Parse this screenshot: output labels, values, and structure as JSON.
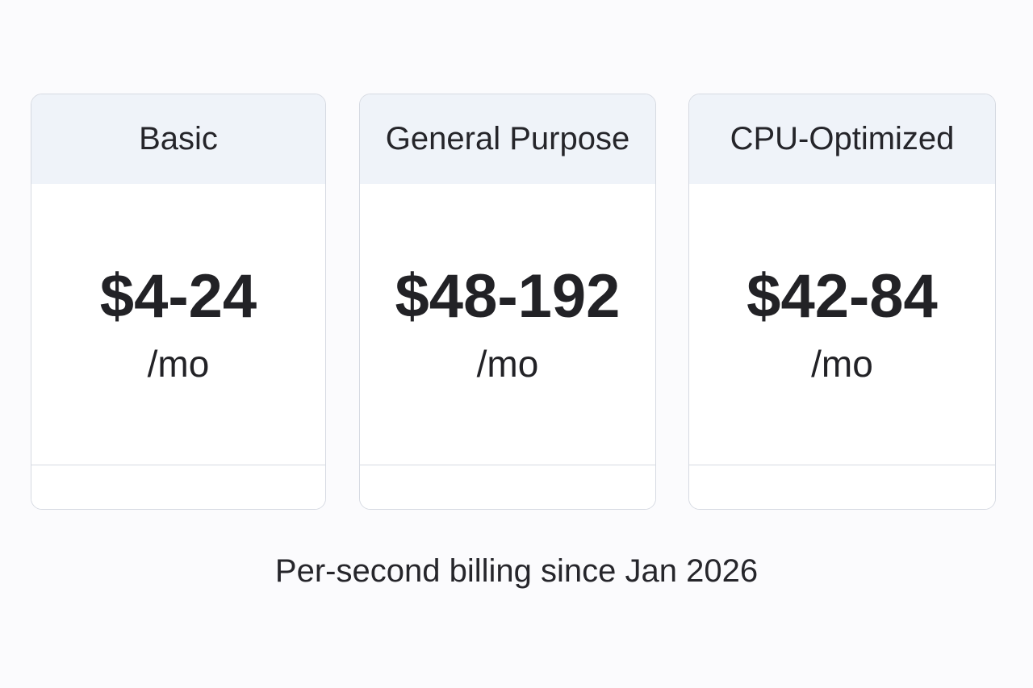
{
  "plans": [
    {
      "name": "Basic",
      "price": "$4-24",
      "period": "/mo"
    },
    {
      "name": "General Purpose",
      "price": "$48-192",
      "period": "/mo"
    },
    {
      "name": "CPU-Optimized",
      "price": "$42-84",
      "period": "/mo"
    }
  ],
  "footer_note": "Per-second billing since Jan 2026",
  "colors": {
    "page_background": "#fbfbfd",
    "card_header_background": "#eff3f9",
    "card_border": "#d6dae2",
    "text": "#222226"
  }
}
